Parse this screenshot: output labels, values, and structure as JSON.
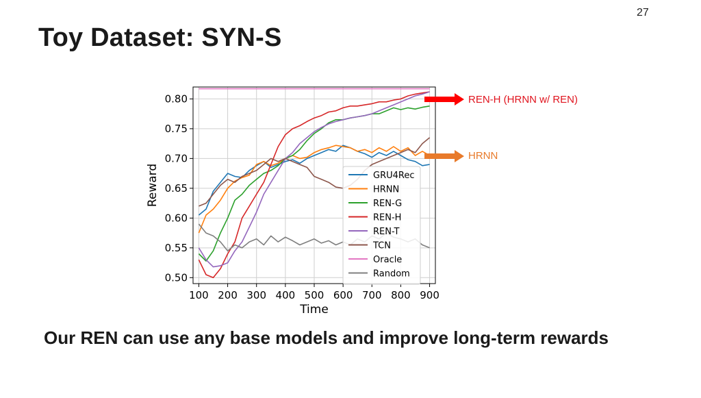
{
  "slide": {
    "number": "27",
    "title": "Toy Dataset: SYN-S",
    "caption": "Our REN can use any base models and improve long-term rewards"
  },
  "callouts": {
    "top_label": "REN-H (HRNN w/ REN)",
    "top_color": "#e0141e",
    "hrnn_label": "HRNN",
    "hrnn_color": "#e87a2a"
  },
  "chart_data": {
    "type": "line",
    "xlabel": "Time",
    "ylabel": "Reward",
    "xlim": [
      80,
      920
    ],
    "ylim": [
      0.49,
      0.82
    ],
    "xticks": [
      100,
      200,
      300,
      400,
      500,
      600,
      700,
      800,
      900
    ],
    "yticks": [
      0.5,
      0.55,
      0.6,
      0.65,
      0.7,
      0.75,
      0.8
    ],
    "ytick_labels": [
      "0.50",
      "0.55",
      "0.60",
      "0.65",
      "0.70",
      "0.75",
      "0.80"
    ],
    "grid": true,
    "legend_position": "lower-right",
    "x": [
      100,
      125,
      150,
      175,
      200,
      225,
      250,
      275,
      300,
      325,
      350,
      375,
      400,
      425,
      450,
      475,
      500,
      525,
      550,
      575,
      600,
      625,
      650,
      675,
      700,
      725,
      750,
      775,
      800,
      825,
      850,
      875,
      900
    ],
    "series": [
      {
        "name": "GRU4Rec",
        "color": "#1f77b4",
        "values": [
          0.605,
          0.615,
          0.645,
          0.66,
          0.675,
          0.67,
          0.668,
          0.68,
          0.688,
          0.695,
          0.685,
          0.69,
          0.695,
          0.698,
          0.692,
          0.7,
          0.705,
          0.71,
          0.715,
          0.712,
          0.722,
          0.718,
          0.712,
          0.708,
          0.702,
          0.71,
          0.705,
          0.712,
          0.705,
          0.698,
          0.695,
          0.688,
          0.69
        ]
      },
      {
        "name": "HRNN",
        "color": "#ff7f0e",
        "values": [
          0.575,
          0.605,
          0.615,
          0.63,
          0.65,
          0.662,
          0.668,
          0.672,
          0.69,
          0.695,
          0.688,
          0.692,
          0.7,
          0.705,
          0.7,
          0.702,
          0.71,
          0.715,
          0.718,
          0.722,
          0.72,
          0.718,
          0.712,
          0.715,
          0.71,
          0.718,
          0.712,
          0.72,
          0.712,
          0.718,
          0.705,
          0.712,
          0.705
        ]
      },
      {
        "name": "REN-G",
        "color": "#2ca02c",
        "values": [
          0.54,
          0.528,
          0.545,
          0.575,
          0.6,
          0.63,
          0.64,
          0.655,
          0.665,
          0.675,
          0.68,
          0.688,
          0.7,
          0.705,
          0.715,
          0.73,
          0.742,
          0.75,
          0.76,
          0.765,
          0.765,
          0.768,
          0.77,
          0.772,
          0.775,
          0.775,
          0.78,
          0.785,
          0.782,
          0.785,
          0.783,
          0.786,
          0.788
        ]
      },
      {
        "name": "REN-H",
        "color": "#d62728",
        "values": [
          0.53,
          0.505,
          0.5,
          0.515,
          0.54,
          0.56,
          0.6,
          0.62,
          0.64,
          0.66,
          0.69,
          0.72,
          0.74,
          0.75,
          0.755,
          0.762,
          0.768,
          0.772,
          0.778,
          0.78,
          0.785,
          0.788,
          0.788,
          0.79,
          0.792,
          0.795,
          0.795,
          0.798,
          0.8,
          0.805,
          0.808,
          0.81,
          0.812
        ]
      },
      {
        "name": "REN-T",
        "color": "#9467bd",
        "values": [
          0.55,
          0.53,
          0.518,
          0.52,
          0.525,
          0.545,
          0.56,
          0.585,
          0.61,
          0.64,
          0.66,
          0.68,
          0.7,
          0.71,
          0.725,
          0.735,
          0.745,
          0.752,
          0.758,
          0.762,
          0.765,
          0.768,
          0.77,
          0.772,
          0.775,
          0.78,
          0.785,
          0.79,
          0.795,
          0.8,
          0.805,
          0.808,
          0.812
        ]
      },
      {
        "name": "TCN",
        "color": "#8c564b",
        "values": [
          0.62,
          0.625,
          0.64,
          0.655,
          0.665,
          0.66,
          0.67,
          0.675,
          0.68,
          0.69,
          0.7,
          0.695,
          0.7,
          0.695,
          0.69,
          0.685,
          0.67,
          0.665,
          0.66,
          0.652,
          0.65,
          0.655,
          0.665,
          0.68,
          0.69,
          0.695,
          0.7,
          0.705,
          0.71,
          0.715,
          0.71,
          0.725,
          0.735
        ]
      },
      {
        "name": "Oracle",
        "color": "#e377c2",
        "values": [
          0.817,
          0.817,
          0.817,
          0.817,
          0.817,
          0.817,
          0.817,
          0.817,
          0.817,
          0.817,
          0.817,
          0.817,
          0.817,
          0.817,
          0.817,
          0.817,
          0.817,
          0.817,
          0.817,
          0.817,
          0.817,
          0.817,
          0.817,
          0.817,
          0.817,
          0.817,
          0.817,
          0.817,
          0.817,
          0.817,
          0.817,
          0.817,
          0.817
        ]
      },
      {
        "name": "Random",
        "color": "#7f7f7f",
        "values": [
          0.59,
          0.575,
          0.57,
          0.56,
          0.545,
          0.555,
          0.55,
          0.56,
          0.565,
          0.555,
          0.57,
          0.56,
          0.568,
          0.562,
          0.555,
          0.56,
          0.565,
          0.558,
          0.562,
          0.555,
          0.56,
          0.555,
          0.565,
          0.56,
          0.57,
          0.565,
          0.575,
          0.568,
          0.565,
          0.56,
          0.565,
          0.555,
          0.55
        ]
      }
    ]
  }
}
